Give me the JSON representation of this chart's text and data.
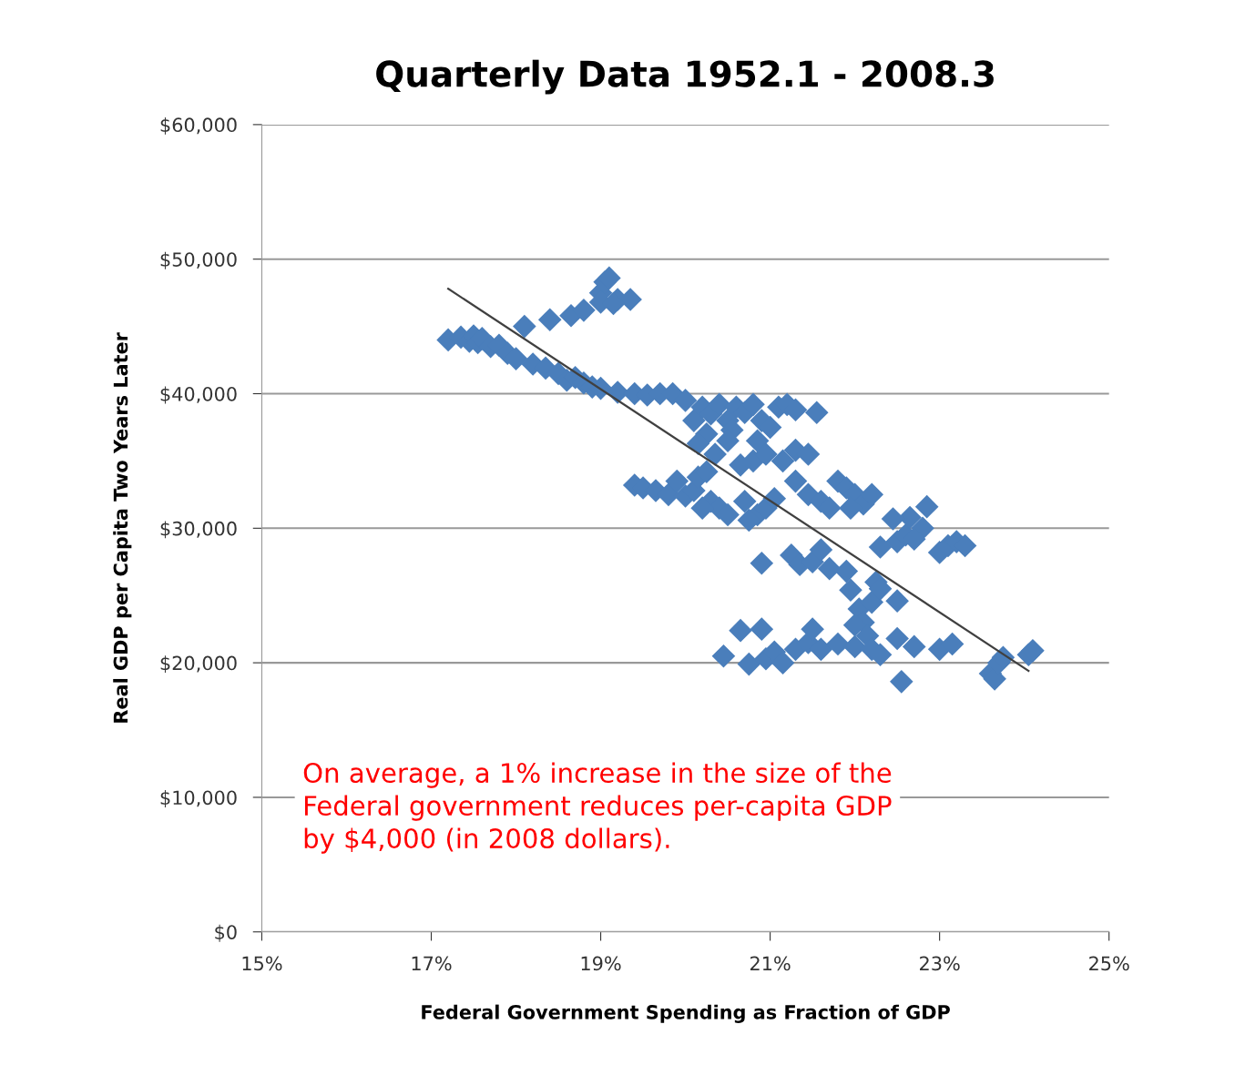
{
  "chart_data": {
    "type": "scatter",
    "title": "Quarterly Data 1952.1 - 2008.3",
    "xlabel": "Federal Government Spending as Fraction of GDP",
    "ylabel": "Real GDP per Capita Two Years Later",
    "xlim": [
      15,
      25
    ],
    "ylim": [
      0,
      60000
    ],
    "xticks": [
      {
        "value": 15,
        "label": "15%"
      },
      {
        "value": 17,
        "label": "17%"
      },
      {
        "value": 19,
        "label": "19%"
      },
      {
        "value": 21,
        "label": "21%"
      },
      {
        "value": 23,
        "label": "23%"
      },
      {
        "value": 25,
        "label": "25%"
      }
    ],
    "yticks": [
      {
        "value": 0,
        "label": "$0"
      },
      {
        "value": 10000,
        "label": "$10,000"
      },
      {
        "value": 20000,
        "label": "$20,000"
      },
      {
        "value": 30000,
        "label": "$30,000"
      },
      {
        "value": 40000,
        "label": "$40,000"
      },
      {
        "value": 50000,
        "label": "$50,000"
      },
      {
        "value": 60000,
        "label": "$60,000"
      }
    ],
    "grid": "y",
    "annotations": [
      "On average, a 1% increase in the size of the\nFederal government reduces per-capita GDP\nby $4,000 (in 2008 dollars)."
    ],
    "series": [
      {
        "marker": "diamond",
        "color": "#4a7ebb",
        "x": [
          17.2,
          17.35,
          17.45,
          17.5,
          17.55,
          17.6,
          17.7,
          17.8,
          17.9,
          18.0,
          18.2,
          18.35,
          18.5,
          18.6,
          18.7,
          18.8,
          18.9,
          19.0,
          18.1,
          18.4,
          18.65,
          18.8,
          19.0,
          19.05,
          19.1,
          19.0,
          19.2,
          19.35,
          19.15,
          19.2,
          19.4,
          19.55,
          19.7,
          19.85,
          20.0,
          20.1,
          20.2,
          20.3,
          20.25,
          20.4,
          20.5,
          20.55,
          20.6,
          20.7,
          20.8,
          20.9,
          20.85,
          21.0,
          21.1,
          21.2,
          21.3,
          21.55,
          20.15,
          20.35,
          20.8,
          20.95,
          21.15,
          21.3,
          21.45,
          20.65,
          20.5,
          19.4,
          19.5,
          19.65,
          19.8,
          19.9,
          20.0,
          20.1,
          20.15,
          20.25,
          20.3,
          20.4,
          20.5,
          20.2,
          20.7,
          20.85,
          20.95,
          21.05,
          20.75,
          21.3,
          21.45,
          21.6,
          21.7,
          21.8,
          21.9,
          22.0,
          22.1,
          22.2,
          21.95,
          22.3,
          22.5,
          22.6,
          22.65,
          22.8,
          22.85,
          22.7,
          22.45,
          23.0,
          23.1,
          23.2,
          23.3,
          21.25,
          21.35,
          21.5,
          21.6,
          21.7,
          21.9,
          21.95,
          22.05,
          22.1,
          22.2,
          22.25,
          22.3,
          22.5,
          22.0,
          22.15,
          20.9,
          20.45,
          20.65,
          20.75,
          20.9,
          20.95,
          21.05,
          21.15,
          21.3,
          21.45,
          21.5,
          21.6,
          21.8,
          22.0,
          22.2,
          22.3,
          22.5,
          22.55,
          22.7,
          23.0,
          23.15,
          23.6,
          23.65,
          23.7,
          23.75,
          24.05,
          24.1
        ],
        "values": [
          44000,
          44200,
          43900,
          44300,
          43800,
          44100,
          43500,
          43600,
          43000,
          42600,
          42200,
          41900,
          41500,
          41000,
          41200,
          40800,
          40500,
          40400,
          45000,
          45500,
          45800,
          46200,
          47500,
          48300,
          48600,
          46800,
          47000,
          47000,
          46700,
          40100,
          40000,
          39900,
          40000,
          40000,
          39500,
          38000,
          39000,
          38500,
          37000,
          39200,
          38000,
          37300,
          39000,
          38600,
          39200,
          38000,
          36500,
          37500,
          39000,
          39200,
          38800,
          38600,
          36300,
          35500,
          35000,
          35500,
          35000,
          35800,
          35500,
          34700,
          36500,
          33200,
          33000,
          32800,
          32500,
          33500,
          32400,
          32800,
          33800,
          34200,
          32000,
          31500,
          31000,
          31500,
          32000,
          31000,
          31500,
          32200,
          30600,
          33500,
          32500,
          32000,
          31500,
          33500,
          33000,
          32500,
          31800,
          32500,
          31500,
          28600,
          29000,
          29500,
          30800,
          30000,
          31600,
          29200,
          30700,
          28200,
          28700,
          29000,
          28700,
          28000,
          27300,
          27500,
          28400,
          27000,
          26800,
          25400,
          24000,
          23000,
          24500,
          26000,
          25500,
          24600,
          22800,
          22000,
          27400,
          20500,
          22400,
          19900,
          22500,
          20300,
          20800,
          20000,
          21000,
          21500,
          22500,
          21000,
          21400,
          21200,
          21000,
          20600,
          21800,
          18600,
          21200,
          21000,
          21400,
          19200,
          18800,
          20000,
          20400,
          20600,
          20900
        ]
      },
      {
        "type": "line",
        "color": "#404040",
        "x": [
          17.2,
          24.05
        ],
        "values": [
          47800,
          19400
        ]
      }
    ]
  }
}
